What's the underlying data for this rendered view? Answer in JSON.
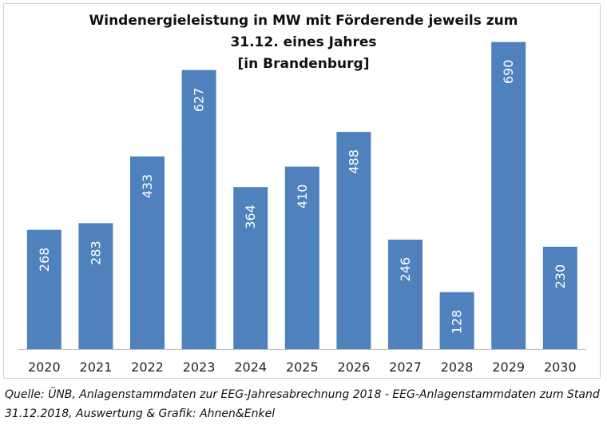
{
  "chart_data": {
    "type": "bar",
    "title_lines": [
      "Windenergieleistung in MW mit Förderende jeweils zum",
      "31.12. eines Jahres",
      "[in Brandenburg]"
    ],
    "categories": [
      "2020",
      "2021",
      "2022",
      "2023",
      "2024",
      "2025",
      "2026",
      "2027",
      "2028",
      "2029",
      "2030"
    ],
    "values": [
      268,
      283,
      433,
      627,
      364,
      410,
      488,
      246,
      128,
      690,
      230
    ],
    "ylim": [
      0,
      700
    ],
    "grid": false,
    "legend": "none",
    "colors": {
      "bar": "#4f81bd",
      "bar_label": "#ffffff",
      "axis": "#bfbfbf"
    }
  },
  "footer": {
    "source_line1": "Quelle: ÜNB, Anlagenstammdaten zur EEG-Jahresabrechnung 2018 - EEG-Anlagenstammdaten zum Stand",
    "source_line2": "31.12.2018, Auswertung & Grafik: Ahnen&Enkel"
  }
}
